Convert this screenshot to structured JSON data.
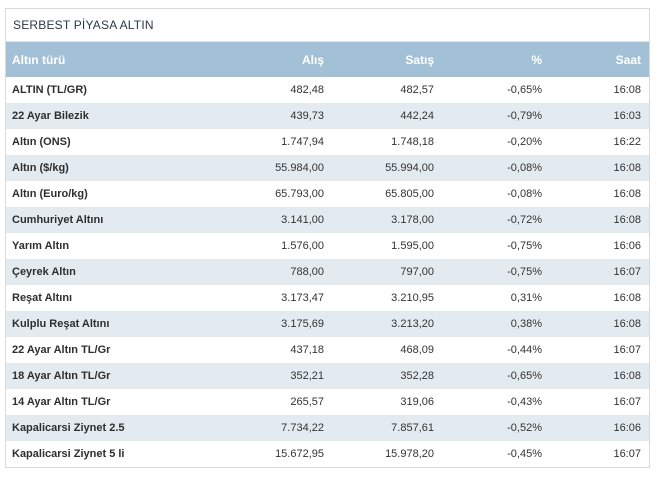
{
  "panel": {
    "title": "SERBEST PİYASA ALTIN"
  },
  "table": {
    "headers": {
      "name": "Altın türü",
      "alis": "Alış",
      "satis": "Satış",
      "pct": "%",
      "saat": "Saat"
    },
    "rows": [
      {
        "name": "ALTIN (TL/GR)",
        "alis": "482,48",
        "satis": "482,57",
        "pct": "-0,65%",
        "saat": "16:08"
      },
      {
        "name": "22 Ayar Bilezik",
        "alis": "439,73",
        "satis": "442,24",
        "pct": "-0,79%",
        "saat": "16:03"
      },
      {
        "name": "Altın (ONS)",
        "alis": "1.747,94",
        "satis": "1.748,18",
        "pct": "-0,20%",
        "saat": "16:22"
      },
      {
        "name": "Altın ($/kg)",
        "alis": "55.984,00",
        "satis": "55.994,00",
        "pct": "-0,08%",
        "saat": "16:08"
      },
      {
        "name": "Altın (Euro/kg)",
        "alis": "65.793,00",
        "satis": "65.805,00",
        "pct": "-0,08%",
        "saat": "16:08"
      },
      {
        "name": "Cumhuriyet Altını",
        "alis": "3.141,00",
        "satis": "3.178,00",
        "pct": "-0,72%",
        "saat": "16:08"
      },
      {
        "name": "Yarım Altın",
        "alis": "1.576,00",
        "satis": "1.595,00",
        "pct": "-0,75%",
        "saat": "16:06"
      },
      {
        "name": "Çeyrek Altın",
        "alis": "788,00",
        "satis": "797,00",
        "pct": "-0,75%",
        "saat": "16:07"
      },
      {
        "name": "Reşat Altını",
        "alis": "3.173,47",
        "satis": "3.210,95",
        "pct": "0,31%",
        "saat": "16:08"
      },
      {
        "name": "Kulplu Reşat Altını",
        "alis": "3.175,69",
        "satis": "3.213,20",
        "pct": "0,38%",
        "saat": "16:08"
      },
      {
        "name": "22 Ayar Altın TL/Gr",
        "alis": "437,18",
        "satis": "468,09",
        "pct": "-0,44%",
        "saat": "16:07"
      },
      {
        "name": "18 Ayar Altın TL/Gr",
        "alis": "352,21",
        "satis": "352,28",
        "pct": "-0,65%",
        "saat": "16:08"
      },
      {
        "name": "14 Ayar Altın TL/Gr",
        "alis": "265,57",
        "satis": "319,06",
        "pct": "-0,43%",
        "saat": "16:07"
      },
      {
        "name": "Kapalicarsi Ziynet 2.5",
        "alis": "7.734,22",
        "satis": "7.857,61",
        "pct": "-0,52%",
        "saat": "16:06"
      },
      {
        "name": "Kapalicarsi Ziynet 5 li",
        "alis": "15.672,95",
        "satis": "15.978,20",
        "pct": "-0,45%",
        "saat": "16:07"
      }
    ]
  }
}
